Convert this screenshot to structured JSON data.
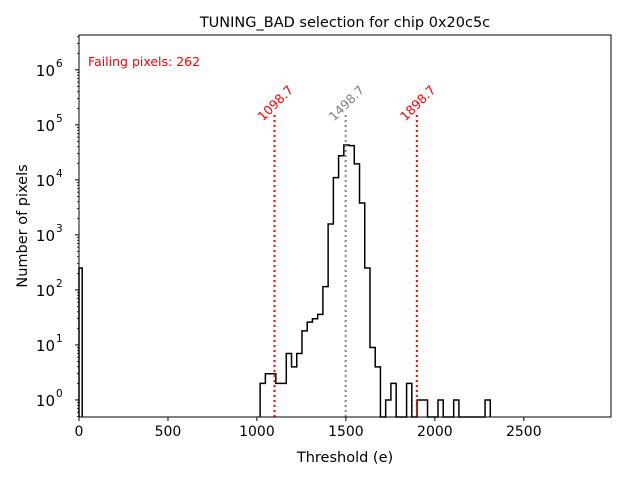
{
  "chart_data": {
    "type": "histogram",
    "title": "TUNING_BAD selection for chip 0x20c5c",
    "xlabel": "Threshold (e)",
    "ylabel": "Number of pixels",
    "xlim": [
      0,
      2990
    ],
    "ylim": [
      0.49,
      4300000
    ],
    "yscale": "log",
    "x_ticks": [
      0,
      500,
      1000,
      1500,
      2000,
      2500
    ],
    "x_tick_labels": [
      "0",
      "500",
      "1000",
      "1500",
      "2000",
      "2500"
    ],
    "y_ticks": [
      1,
      10,
      100,
      1000,
      10000,
      100000,
      1000000
    ],
    "y_tick_labels": [
      {
        "base": "10",
        "exp": "0"
      },
      {
        "base": "10",
        "exp": "1"
      },
      {
        "base": "10",
        "exp": "2"
      },
      {
        "base": "10",
        "exp": "3"
      },
      {
        "base": "10",
        "exp": "4"
      },
      {
        "base": "10",
        "exp": "5"
      },
      {
        "base": "10",
        "exp": "6"
      }
    ],
    "bin_start": 1018,
    "bin_width": 29.4,
    "counts": [
      2,
      3,
      3,
      2,
      2,
      7,
      4,
      7,
      18,
      26,
      30,
      36,
      115,
      1580,
      11000,
      27500,
      43000,
      42000,
      19500,
      3800,
      250,
      9,
      4,
      0,
      1,
      2,
      0,
      0,
      2,
      0,
      1,
      1,
      0,
      0,
      1,
      0,
      0,
      1,
      0,
      0,
      0,
      0,
      0,
      1
    ],
    "extra_bins": [
      {
        "left": 0,
        "right": 18,
        "count": 250
      }
    ],
    "vlines": [
      {
        "x": 1098.7,
        "label": "1098.7",
        "color": "#ff0000",
        "top": 170000
      },
      {
        "x": 1498.7,
        "label": "1498.7",
        "color": "#808080",
        "top": 170000
      },
      {
        "x": 1898.7,
        "label": "1898.7",
        "color": "#ff0000",
        "top": 170000
      }
    ],
    "annotation": {
      "text": "Failing pixels: 262",
      "color": "#ff0000"
    }
  }
}
